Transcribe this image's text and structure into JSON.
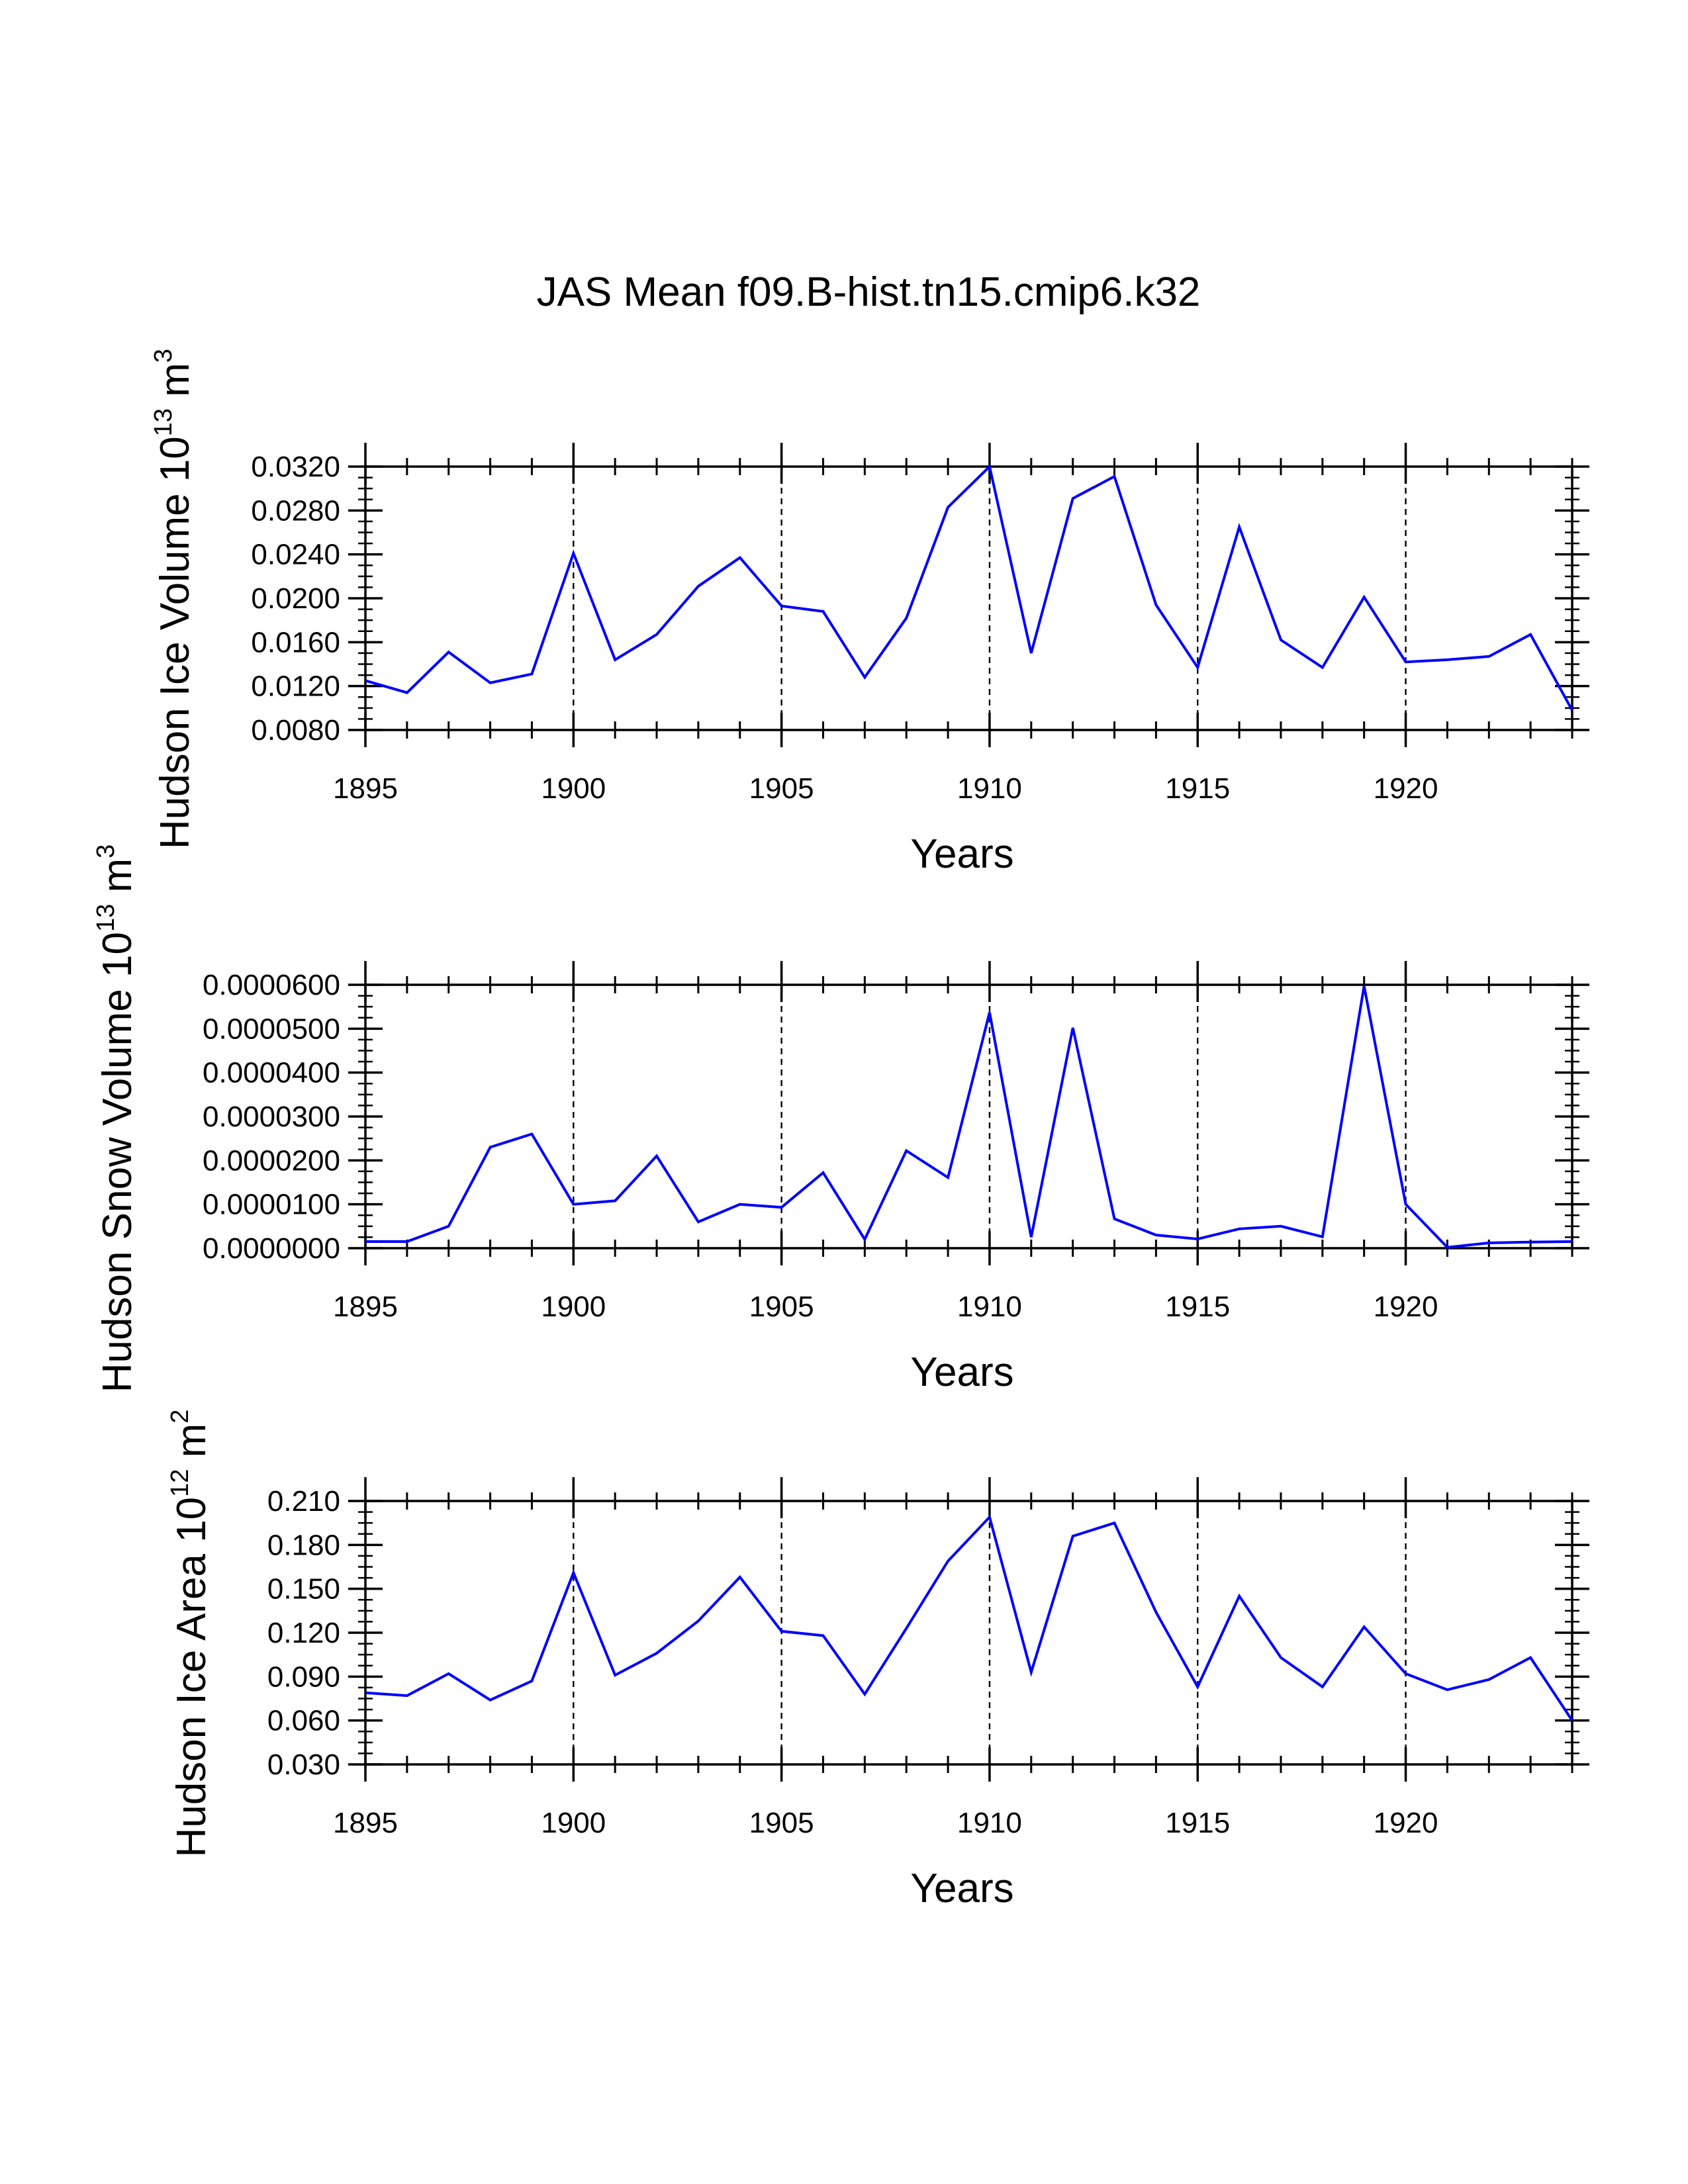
{
  "figure": {
    "title": "JAS Mean f09.B-hist.tn15.cmip6.k32"
  },
  "colors": {
    "series": "#0000ff",
    "axes": "#000000",
    "background": "#ffffff"
  },
  "chart_data": [
    {
      "type": "line",
      "xlabel": "Years",
      "ylabel": "Hudson Ice Volume 10",
      "ylabel_exp": "13",
      "ylabel_unit": " m",
      "ylabel_unit_exp": "3",
      "xlim": [
        1895,
        1924
      ],
      "ylim": [
        0.008,
        0.032
      ],
      "xticks": [
        1895,
        1900,
        1905,
        1910,
        1915,
        1920
      ],
      "xtick_labels": [
        "1895",
        "1900",
        "1905",
        "1910",
        "1915",
        "1920"
      ],
      "yticks": [
        0.008,
        0.012,
        0.016,
        0.02,
        0.024,
        0.028,
        0.032
      ],
      "ytick_labels": [
        "0.0080",
        "0.0120",
        "0.0160",
        "0.0200",
        "0.0240",
        "0.0280",
        "0.0320"
      ],
      "y_minor_step": 0.001,
      "x_minor_step": 1,
      "dashed_gridlines_x": [
        1900,
        1905,
        1910,
        1915,
        1920
      ],
      "x": [
        1895,
        1896,
        1897,
        1898,
        1899,
        1900,
        1901,
        1902,
        1903,
        1904,
        1905,
        1906,
        1907,
        1908,
        1909,
        1910,
        1911,
        1912,
        1913,
        1914,
        1915,
        1916,
        1917,
        1918,
        1919,
        1920,
        1921,
        1922,
        1923,
        1924
      ],
      "values": [
        0.0125,
        0.0114,
        0.0151,
        0.0123,
        0.0131,
        0.0241,
        0.0144,
        0.0167,
        0.0211,
        0.0237,
        0.0193,
        0.0188,
        0.0128,
        0.0182,
        0.0283,
        0.032,
        0.015,
        0.0291,
        0.0311,
        0.0194,
        0.0137,
        0.0265,
        0.0162,
        0.0137,
        0.0201,
        0.0142,
        0.0144,
        0.0147,
        0.0167,
        0.0098
      ]
    },
    {
      "type": "line",
      "xlabel": "Years",
      "ylabel": "Hudson Snow Volume 10",
      "ylabel_exp": "13",
      "ylabel_unit": " m",
      "ylabel_unit_exp": "3",
      "xlim": [
        1895,
        1924
      ],
      "ylim": [
        0.0,
        6e-05
      ],
      "xticks": [
        1895,
        1900,
        1905,
        1910,
        1915,
        1920
      ],
      "xtick_labels": [
        "1895",
        "1900",
        "1905",
        "1910",
        "1915",
        "1920"
      ],
      "yticks": [
        0.0,
        1e-05,
        2e-05,
        3e-05,
        4e-05,
        5e-05,
        6e-05
      ],
      "ytick_labels": [
        "0.0000000",
        "0.0000100",
        "0.0000200",
        "0.0000300",
        "0.0000400",
        "0.0000500",
        "0.0000600"
      ],
      "y_minor_step": 2.5e-06,
      "x_minor_step": 1,
      "dashed_gridlines_x": [
        1900,
        1905,
        1910,
        1915,
        1920
      ],
      "x": [
        1895,
        1896,
        1897,
        1898,
        1899,
        1900,
        1901,
        1902,
        1903,
        1904,
        1905,
        1906,
        1907,
        1908,
        1909,
        1910,
        1911,
        1912,
        1913,
        1914,
        1915,
        1916,
        1917,
        1918,
        1919,
        1920,
        1921,
        1922,
        1923,
        1924
      ],
      "values": [
        1.5e-06,
        1.5e-06,
        5e-06,
        2.3e-05,
        2.6e-05,
        1e-05,
        1.08e-05,
        2.1e-05,
        6e-06,
        1e-05,
        9.3e-06,
        1.72e-05,
        2e-06,
        2.22e-05,
        1.61e-05,
        5.37e-05,
        2.5e-06,
        5.02e-05,
        6.7e-06,
        3e-06,
        2.1e-06,
        4.4e-06,
        5e-06,
        2.6e-06,
        5.97e-05,
        1e-05,
        2e-07,
        1.2e-06,
        1.4e-06,
        1.5e-06
      ]
    },
    {
      "type": "line",
      "xlabel": "Years",
      "ylabel": "Hudson Ice Area 10",
      "ylabel_exp": "12",
      "ylabel_unit": " m",
      "ylabel_unit_exp": "2",
      "xlim": [
        1895,
        1924
      ],
      "ylim": [
        0.03,
        0.21
      ],
      "xticks": [
        1895,
        1900,
        1905,
        1910,
        1915,
        1920
      ],
      "xtick_labels": [
        "1895",
        "1900",
        "1905",
        "1910",
        "1915",
        "1920"
      ],
      "yticks": [
        0.03,
        0.06,
        0.09,
        0.12,
        0.15,
        0.18,
        0.21
      ],
      "ytick_labels": [
        "0.030",
        "0.060",
        "0.090",
        "0.120",
        "0.150",
        "0.180",
        "0.210"
      ],
      "y_minor_step": 0.0075,
      "x_minor_step": 1,
      "dashed_gridlines_x": [
        1900,
        1905,
        1910,
        1915,
        1920
      ],
      "x": [
        1895,
        1896,
        1897,
        1898,
        1899,
        1900,
        1901,
        1902,
        1903,
        1904,
        1905,
        1906,
        1907,
        1908,
        1909,
        1910,
        1911,
        1912,
        1913,
        1914,
        1915,
        1916,
        1917,
        1918,
        1919,
        1920,
        1921,
        1922,
        1923,
        1924
      ],
      "values": [
        0.079,
        0.077,
        0.092,
        0.074,
        0.087,
        0.161,
        0.091,
        0.106,
        0.128,
        0.158,
        0.121,
        0.118,
        0.078,
        0.123,
        0.169,
        0.199,
        0.093,
        0.186,
        0.195,
        0.134,
        0.083,
        0.145,
        0.103,
        0.083,
        0.124,
        0.092,
        0.081,
        0.088,
        0.103,
        0.06
      ]
    }
  ]
}
